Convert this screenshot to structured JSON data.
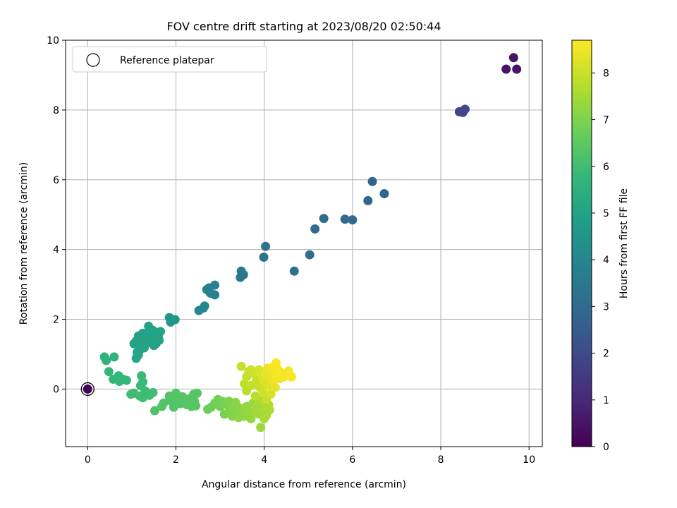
{
  "chart_data": {
    "type": "scatter",
    "title": "FOV centre drift starting at 2023/08/20 02:50:44",
    "xlabel": "Angular distance from reference (arcmin)",
    "ylabel": "Rotation from reference (arcmin)",
    "xlim": [
      -0.5,
      10.3
    ],
    "ylim": [
      -1.65,
      10.0
    ],
    "x_ticks": [
      0,
      2,
      4,
      6,
      8,
      10
    ],
    "y_ticks": [
      0,
      2,
      4,
      6,
      8,
      10
    ],
    "grid": true,
    "legend": {
      "position": "top-left",
      "entries": [
        "Reference platepar"
      ]
    },
    "reference_point": {
      "x": 0,
      "y": 0
    },
    "colorbar": {
      "label": "Hours from first FF file",
      "range": [
        0,
        8.7
      ],
      "ticks": [
        0,
        1,
        2,
        3,
        4,
        5,
        6,
        7,
        8
      ],
      "colormap": "viridis"
    },
    "points": [
      {
        "x": 0.0,
        "y": 0.0,
        "t": 0.0
      },
      {
        "x": 9.48,
        "y": 9.17,
        "t": 0.5
      },
      {
        "x": 9.65,
        "y": 9.5,
        "t": 0.5
      },
      {
        "x": 9.72,
        "y": 9.17,
        "t": 0.5
      },
      {
        "x": 8.42,
        "y": 7.95,
        "t": 1.85
      },
      {
        "x": 8.5,
        "y": 7.93,
        "t": 1.9
      },
      {
        "x": 8.55,
        "y": 8.02,
        "t": 1.9
      },
      {
        "x": 6.45,
        "y": 5.95,
        "t": 2.8
      },
      {
        "x": 6.72,
        "y": 5.6,
        "t": 2.8
      },
      {
        "x": 6.35,
        "y": 5.4,
        "t": 2.8
      },
      {
        "x": 5.83,
        "y": 4.87,
        "t": 3.0
      },
      {
        "x": 6.0,
        "y": 4.85,
        "t": 3.0
      },
      {
        "x": 5.35,
        "y": 4.89,
        "t": 3.05
      },
      {
        "x": 5.15,
        "y": 4.59,
        "t": 3.05
      },
      {
        "x": 5.03,
        "y": 3.85,
        "t": 3.1
      },
      {
        "x": 4.68,
        "y": 3.38,
        "t": 3.2
      },
      {
        "x": 4.03,
        "y": 4.09,
        "t": 3.3
      },
      {
        "x": 3.99,
        "y": 3.78,
        "t": 3.3
      },
      {
        "x": 3.48,
        "y": 3.38,
        "t": 3.5
      },
      {
        "x": 3.53,
        "y": 3.28,
        "t": 3.5
      },
      {
        "x": 3.46,
        "y": 3.2,
        "t": 3.5
      },
      {
        "x": 2.88,
        "y": 2.98,
        "t": 3.8
      },
      {
        "x": 2.75,
        "y": 2.9,
        "t": 3.8
      },
      {
        "x": 2.7,
        "y": 2.85,
        "t": 3.8
      },
      {
        "x": 2.78,
        "y": 2.75,
        "t": 3.8
      },
      {
        "x": 2.88,
        "y": 2.7,
        "t": 3.8
      },
      {
        "x": 2.65,
        "y": 2.38,
        "t": 4.0
      },
      {
        "x": 2.62,
        "y": 2.32,
        "t": 4.0
      },
      {
        "x": 2.52,
        "y": 2.25,
        "t": 4.0
      },
      {
        "x": 1.85,
        "y": 2.05,
        "t": 4.6
      },
      {
        "x": 1.98,
        "y": 1.99,
        "t": 4.6
      },
      {
        "x": 1.88,
        "y": 1.92,
        "t": 4.6
      },
      {
        "x": 1.38,
        "y": 1.8,
        "t": 5.0
      },
      {
        "x": 1.42,
        "y": 1.72,
        "t": 5.0
      },
      {
        "x": 1.48,
        "y": 1.68,
        "t": 5.0
      },
      {
        "x": 1.55,
        "y": 1.62,
        "t": 5.0
      },
      {
        "x": 1.65,
        "y": 1.65,
        "t": 5.1
      },
      {
        "x": 1.6,
        "y": 1.52,
        "t": 5.0
      },
      {
        "x": 1.25,
        "y": 1.6,
        "t": 5.0
      },
      {
        "x": 1.15,
        "y": 1.52,
        "t": 5.0
      },
      {
        "x": 1.2,
        "y": 1.45,
        "t": 5.0
      },
      {
        "x": 1.3,
        "y": 1.42,
        "t": 5.0
      },
      {
        "x": 1.1,
        "y": 1.38,
        "t": 5.0
      },
      {
        "x": 1.05,
        "y": 1.3,
        "t": 5.0
      },
      {
        "x": 1.22,
        "y": 1.3,
        "t": 5.0
      },
      {
        "x": 1.35,
        "y": 1.32,
        "t": 5.0
      },
      {
        "x": 1.45,
        "y": 1.38,
        "t": 5.0
      },
      {
        "x": 1.55,
        "y": 1.3,
        "t": 5.0
      },
      {
        "x": 1.62,
        "y": 1.4,
        "t": 5.0
      },
      {
        "x": 1.5,
        "y": 1.25,
        "t": 5.0
      },
      {
        "x": 1.28,
        "y": 1.18,
        "t": 5.05
      },
      {
        "x": 1.18,
        "y": 1.12,
        "t": 5.05
      },
      {
        "x": 1.12,
        "y": 1.05,
        "t": 5.05
      },
      {
        "x": 1.1,
        "y": 0.88,
        "t": 5.1
      },
      {
        "x": 1.15,
        "y": 0.98,
        "t": 5.1
      },
      {
        "x": 1.42,
        "y": 1.6,
        "t": 5.0
      },
      {
        "x": 0.38,
        "y": 0.92,
        "t": 5.6
      },
      {
        "x": 0.42,
        "y": 0.82,
        "t": 5.6
      },
      {
        "x": 0.6,
        "y": 0.92,
        "t": 5.6
      },
      {
        "x": 0.48,
        "y": 0.5,
        "t": 5.7
      },
      {
        "x": 0.7,
        "y": 0.38,
        "t": 5.75
      },
      {
        "x": 0.58,
        "y": 0.28,
        "t": 5.75
      },
      {
        "x": 0.72,
        "y": 0.22,
        "t": 5.8
      },
      {
        "x": 0.88,
        "y": 0.25,
        "t": 5.8
      },
      {
        "x": 0.8,
        "y": 0.28,
        "t": 5.8
      },
      {
        "x": 1.22,
        "y": 0.38,
        "t": 5.85
      },
      {
        "x": 1.25,
        "y": 0.2,
        "t": 5.9
      },
      {
        "x": 1.2,
        "y": 0.1,
        "t": 5.9
      },
      {
        "x": 1.3,
        "y": -0.05,
        "t": 5.9
      },
      {
        "x": 1.05,
        "y": -0.12,
        "t": 6.0
      },
      {
        "x": 0.98,
        "y": -0.15,
        "t": 6.0
      },
      {
        "x": 1.18,
        "y": -0.2,
        "t": 6.0
      },
      {
        "x": 1.25,
        "y": -0.25,
        "t": 6.0
      },
      {
        "x": 1.4,
        "y": -0.18,
        "t": 6.0
      },
      {
        "x": 1.48,
        "y": -0.1,
        "t": 6.0
      },
      {
        "x": 1.52,
        "y": -0.62,
        "t": 6.2
      },
      {
        "x": 1.68,
        "y": -0.5,
        "t": 6.3
      },
      {
        "x": 1.72,
        "y": -0.4,
        "t": 6.3
      },
      {
        "x": 1.85,
        "y": -0.2,
        "t": 6.3
      },
      {
        "x": 1.9,
        "y": -0.35,
        "t": 6.3
      },
      {
        "x": 1.95,
        "y": -0.52,
        "t": 6.3
      },
      {
        "x": 2.0,
        "y": -0.12,
        "t": 6.35
      },
      {
        "x": 2.05,
        "y": -0.3,
        "t": 6.35
      },
      {
        "x": 2.1,
        "y": -0.42,
        "t": 6.35
      },
      {
        "x": 2.15,
        "y": -0.22,
        "t": 6.35
      },
      {
        "x": 2.2,
        "y": -0.32,
        "t": 6.4
      },
      {
        "x": 2.25,
        "y": -0.45,
        "t": 6.4
      },
      {
        "x": 2.3,
        "y": -0.28,
        "t": 6.4
      },
      {
        "x": 2.35,
        "y": -0.5,
        "t": 6.4
      },
      {
        "x": 2.4,
        "y": -0.15,
        "t": 6.4
      },
      {
        "x": 2.42,
        "y": -0.35,
        "t": 6.4
      },
      {
        "x": 2.48,
        "y": -0.12,
        "t": 6.4
      },
      {
        "x": 2.45,
        "y": -0.48,
        "t": 6.4
      },
      {
        "x": 2.72,
        "y": -0.58,
        "t": 6.7
      },
      {
        "x": 2.8,
        "y": -0.52,
        "t": 6.75
      },
      {
        "x": 2.88,
        "y": -0.4,
        "t": 6.8
      },
      {
        "x": 2.95,
        "y": -0.3,
        "t": 6.8
      },
      {
        "x": 3.0,
        "y": -0.5,
        "t": 6.85
      },
      {
        "x": 3.05,
        "y": -0.35,
        "t": 6.9
      },
      {
        "x": 3.1,
        "y": -0.72,
        "t": 6.9
      },
      {
        "x": 3.15,
        "y": -0.45,
        "t": 6.95
      },
      {
        "x": 3.2,
        "y": -0.35,
        "t": 7.0
      },
      {
        "x": 3.22,
        "y": -0.62,
        "t": 7.0
      },
      {
        "x": 3.28,
        "y": -0.78,
        "t": 7.05
      },
      {
        "x": 3.3,
        "y": -0.5,
        "t": 7.05
      },
      {
        "x": 3.35,
        "y": -0.38,
        "t": 7.1
      },
      {
        "x": 3.38,
        "y": -0.7,
        "t": 7.1
      },
      {
        "x": 3.42,
        "y": -0.82,
        "t": 7.15
      },
      {
        "x": 3.45,
        "y": -0.55,
        "t": 7.15
      },
      {
        "x": 3.5,
        "y": -0.65,
        "t": 7.2
      },
      {
        "x": 3.55,
        "y": -0.78,
        "t": 7.2
      },
      {
        "x": 3.6,
        "y": -0.5,
        "t": 7.25
      },
      {
        "x": 3.65,
        "y": -0.7,
        "t": 7.3
      },
      {
        "x": 3.7,
        "y": -0.85,
        "t": 7.3
      },
      {
        "x": 3.75,
        "y": -0.4,
        "t": 7.35
      },
      {
        "x": 3.78,
        "y": -0.62,
        "t": 7.4
      },
      {
        "x": 3.82,
        "y": -0.25,
        "t": 7.45
      },
      {
        "x": 3.85,
        "y": -0.48,
        "t": 7.5
      },
      {
        "x": 3.88,
        "y": -0.72,
        "t": 7.5
      },
      {
        "x": 3.92,
        "y": -1.1,
        "t": 7.4
      },
      {
        "x": 3.95,
        "y": -0.35,
        "t": 7.6
      },
      {
        "x": 4.0,
        "y": -0.85,
        "t": 7.55
      },
      {
        "x": 4.02,
        "y": -0.58,
        "t": 7.6
      },
      {
        "x": 4.05,
        "y": -0.75,
        "t": 7.55
      },
      {
        "x": 4.1,
        "y": -0.45,
        "t": 7.65
      },
      {
        "x": 4.12,
        "y": -0.6,
        "t": 7.6
      },
      {
        "x": 3.48,
        "y": 0.65,
        "t": 7.9
      },
      {
        "x": 3.55,
        "y": 0.15,
        "t": 7.8
      },
      {
        "x": 3.6,
        "y": -0.05,
        "t": 7.8
      },
      {
        "x": 3.65,
        "y": 0.5,
        "t": 8.0
      },
      {
        "x": 3.7,
        "y": 0.1,
        "t": 7.9
      },
      {
        "x": 3.75,
        "y": 0.45,
        "t": 8.1
      },
      {
        "x": 3.8,
        "y": -0.2,
        "t": 7.8
      },
      {
        "x": 3.82,
        "y": 0.25,
        "t": 8.0
      },
      {
        "x": 3.88,
        "y": 0.55,
        "t": 8.2
      },
      {
        "x": 3.9,
        "y": 0.05,
        "t": 8.0
      },
      {
        "x": 3.95,
        "y": 0.35,
        "t": 8.2
      },
      {
        "x": 3.98,
        "y": -0.1,
        "t": 8.1
      },
      {
        "x": 4.0,
        "y": 0.2,
        "t": 8.3
      },
      {
        "x": 4.02,
        "y": 0.45,
        "t": 8.4
      },
      {
        "x": 4.05,
        "y": -0.3,
        "t": 8.0
      },
      {
        "x": 4.08,
        "y": 0.6,
        "t": 8.5
      },
      {
        "x": 4.1,
        "y": 0.1,
        "t": 8.3
      },
      {
        "x": 4.12,
        "y": 0.35,
        "t": 8.4
      },
      {
        "x": 4.15,
        "y": -0.15,
        "t": 8.2
      },
      {
        "x": 4.18,
        "y": 0.5,
        "t": 8.5
      },
      {
        "x": 4.2,
        "y": 0.25,
        "t": 8.5
      },
      {
        "x": 4.22,
        "y": 0.65,
        "t": 8.6
      },
      {
        "x": 4.25,
        "y": 0.05,
        "t": 8.4
      },
      {
        "x": 4.27,
        "y": 0.75,
        "t": 8.7
      },
      {
        "x": 4.3,
        "y": 0.4,
        "t": 8.6
      },
      {
        "x": 4.32,
        "y": 0.55,
        "t": 8.6
      },
      {
        "x": 4.35,
        "y": 0.3,
        "t": 8.55
      },
      {
        "x": 4.4,
        "y": 0.45,
        "t": 8.6
      },
      {
        "x": 4.45,
        "y": 0.35,
        "t": 8.6
      },
      {
        "x": 4.55,
        "y": 0.52,
        "t": 8.65
      },
      {
        "x": 4.62,
        "y": 0.35,
        "t": 8.6
      },
      {
        "x": 3.6,
        "y": 0.35,
        "t": 7.95
      },
      {
        "x": 3.7,
        "y": 0.55,
        "t": 8.05
      }
    ]
  }
}
